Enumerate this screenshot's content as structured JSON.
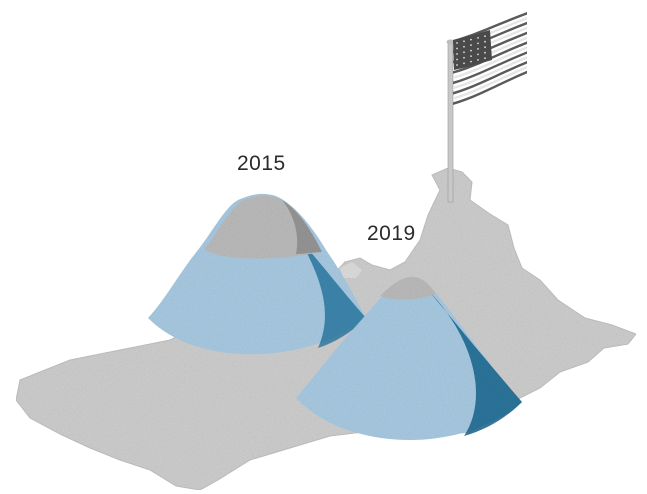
{
  "labels": {
    "left_pile_year": "2015",
    "right_pile_year": "2019"
  },
  "colors": {
    "ground": "#cfcfcf",
    "ground_edge": "#bdbdbd",
    "pile_blue": "#a9cbe3",
    "pile_blue_shadow": "#1f6c93",
    "pile_grey_cap": "#b9b9b9",
    "flag_pole": "#c8c8c8",
    "flag_stripe_dark": "#5a5a5a",
    "flag_stripe_light": "#e6e6e6",
    "flag_canton": "#4a4a4a"
  },
  "icons": {
    "flag": "us-flag-icon"
  },
  "piles": [
    {
      "year": "2015",
      "blue_fraction": 0.62
    },
    {
      "year": "2019",
      "blue_fraction": 0.86
    }
  ]
}
